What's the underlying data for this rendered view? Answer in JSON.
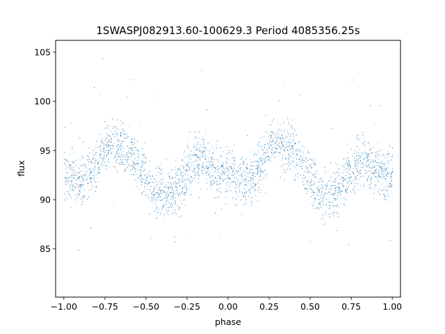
{
  "chart_data": {
    "type": "scatter",
    "title": "1SWASPJ082913.60-100629.3 Period 4085356.25s",
    "xlabel": "phase",
    "ylabel": "flux",
    "xlim": [
      -1.05,
      1.05
    ],
    "ylim": [
      80.1,
      106.2
    ],
    "x_ticks": [
      -1.0,
      -0.75,
      -0.5,
      -0.25,
      0.0,
      0.25,
      0.5,
      0.75,
      1.0
    ],
    "x_tick_labels": [
      "−1.00",
      "−0.75",
      "−0.50",
      "−0.25",
      "0.00",
      "0.25",
      "0.50",
      "0.75",
      "1.00"
    ],
    "y_ticks": [
      85,
      90,
      95,
      100,
      105
    ],
    "y_tick_labels": [
      "85",
      "90",
      "95",
      "100",
      "105"
    ],
    "grid": false,
    "legend": "none",
    "marker_color": "#1f77b4",
    "series": [
      {
        "phase_curve": [
          [
            -1.0,
            92.6
          ],
          [
            -0.95,
            92.3
          ],
          [
            -0.9,
            92.1
          ],
          [
            -0.85,
            92.5
          ],
          [
            -0.8,
            93.6
          ],
          [
            -0.75,
            95.3
          ],
          [
            -0.7,
            95.9
          ],
          [
            -0.65,
            95.5
          ],
          [
            -0.6,
            94.8
          ],
          [
            -0.55,
            93.6
          ],
          [
            -0.5,
            92.2
          ],
          [
            -0.45,
            90.8
          ],
          [
            -0.4,
            90.4
          ],
          [
            -0.35,
            90.6
          ],
          [
            -0.3,
            91.6
          ],
          [
            -0.25,
            93.0
          ],
          [
            -0.2,
            94.4
          ],
          [
            -0.15,
            94.0
          ],
          [
            -0.1,
            93.2
          ],
          [
            -0.05,
            92.6
          ],
          [
            0.0,
            92.6
          ],
          [
            0.05,
            92.3
          ],
          [
            0.1,
            92.1
          ],
          [
            0.15,
            92.5
          ],
          [
            0.2,
            93.6
          ],
          [
            0.25,
            95.3
          ],
          [
            0.3,
            95.9
          ],
          [
            0.35,
            95.5
          ],
          [
            0.4,
            94.8
          ],
          [
            0.45,
            93.6
          ],
          [
            0.5,
            92.2
          ],
          [
            0.55,
            90.8
          ],
          [
            0.6,
            90.4
          ],
          [
            0.65,
            90.6
          ],
          [
            0.7,
            91.6
          ],
          [
            0.75,
            93.0
          ],
          [
            0.8,
            94.4
          ],
          [
            0.85,
            94.0
          ],
          [
            0.9,
            93.2
          ],
          [
            0.95,
            92.6
          ],
          [
            1.0,
            92.6
          ]
        ]
      }
    ]
  }
}
